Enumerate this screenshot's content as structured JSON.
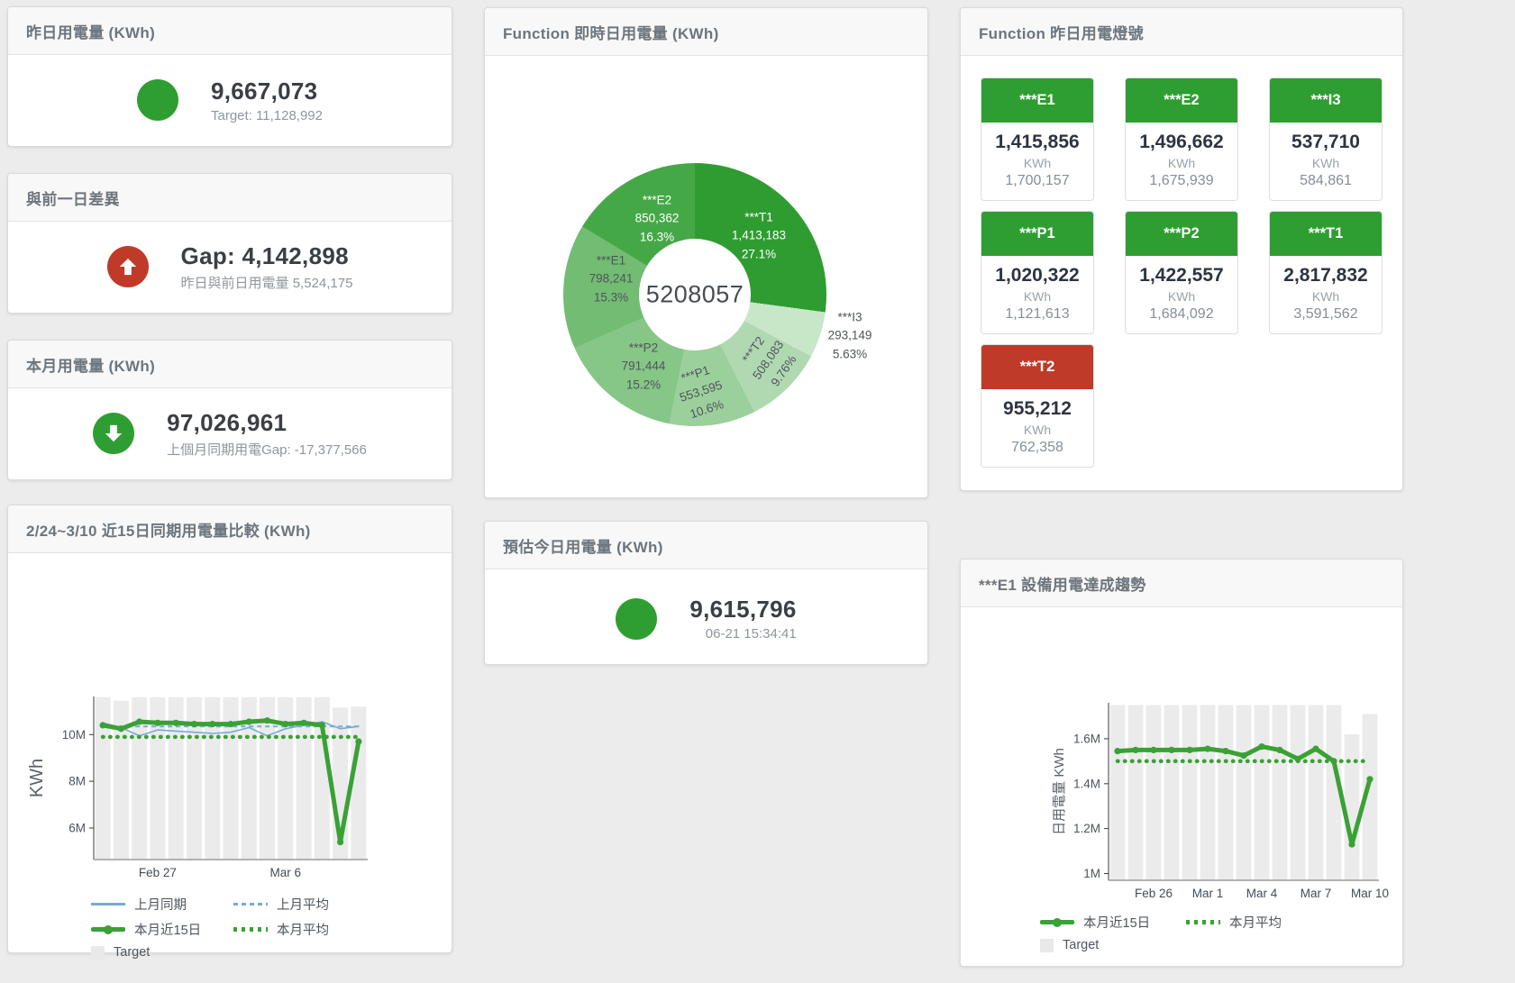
{
  "kpi_cards": [
    {
      "title": "昨日用電量 (KWh)",
      "value": "9,667,073",
      "sub": "Target: 11,128,992",
      "status_color": "#2f9e32",
      "arrow": "none"
    },
    {
      "title": "與前一日差異",
      "value": "Gap: 4,142,898",
      "sub": "昨日與前日用電量 5,524,175",
      "status_color": "#c03a28",
      "arrow": "up"
    },
    {
      "title": "本月用電量 (KWh)",
      "value": "97,026,961",
      "sub": "上個月同期用電Gap: -17,377,566",
      "status_color": "#2f9e32",
      "arrow": "down"
    },
    {
      "title": "預估今日用電量 (KWh)",
      "value": "9,615,796",
      "sub": "06-21 15:34:41",
      "status_color": "#2f9e32",
      "arrow": "none"
    }
  ],
  "donut_card": {
    "title": "Function 即時日用電量 (KWh)",
    "center_value": "5208057"
  },
  "lamp_card": {
    "title": "Function 昨日用電燈號",
    "unit": "KWh",
    "status_colors": {
      "green": "#2f9e32",
      "red": "#c03a28"
    },
    "tiles": [
      {
        "id": "e1",
        "label": "***E1",
        "value": "1,415,856",
        "target": "1,700,157",
        "status": "green"
      },
      {
        "id": "e2",
        "label": "***E2",
        "value": "1,496,662",
        "target": "1,675,939",
        "status": "green"
      },
      {
        "id": "i3",
        "label": "***I3",
        "value": "537,710",
        "target": "584,861",
        "status": "green"
      },
      {
        "id": "p1",
        "label": "***P1",
        "value": "1,020,322",
        "target": "1,121,613",
        "status": "green"
      },
      {
        "id": "p2",
        "label": "***P2",
        "value": "1,422,557",
        "target": "1,684,092",
        "status": "green"
      },
      {
        "id": "t1",
        "label": "***T1",
        "value": "2,817,832",
        "target": "3,591,562",
        "status": "green"
      },
      {
        "id": "t2",
        "label": "***T2",
        "value": "955,212",
        "target": "762,358",
        "status": "red"
      }
    ]
  },
  "compare_card": {
    "title": "2/24~3/10 近15日同期用電量比較 (KWh)",
    "legend": [
      {
        "label": "上月同期",
        "swatch": "blue-line"
      },
      {
        "label": "上月平均",
        "swatch": "blue-dash"
      },
      {
        "label": "本月近15日",
        "swatch": "green-line"
      },
      {
        "label": "本月平均",
        "swatch": "green-dot"
      },
      {
        "label": "Target",
        "swatch": "gray-box"
      }
    ]
  },
  "trend_card": {
    "title": "***E1 設備用電達成趨勢",
    "legend": [
      {
        "label": "本月近15日",
        "swatch": "green-line"
      },
      {
        "label": "本月平均",
        "swatch": "green-dot"
      },
      {
        "label": "Target",
        "swatch": "gray-box"
      }
    ]
  },
  "chart_data": [
    {
      "id": "function-realtime-donut",
      "type": "pie",
      "title": "Function 即時日用電量 (KWh)",
      "center_value": "5208057",
      "slices": [
        {
          "id": "t1",
          "label": "***T1",
          "value": "1,413,183",
          "pct": 27.1,
          "pct_label": "27.1%",
          "color": "#2f9c31",
          "text": "light"
        },
        {
          "id": "i3",
          "label": "***I3",
          "value": "293,149",
          "pct": 5.63,
          "pct_label": "5.63%",
          "color": "#c8e6c8",
          "text": "dark"
        },
        {
          "id": "t2",
          "label": "***T2",
          "value": "508,083",
          "pct": 9.76,
          "pct_label": "9.76%",
          "color": "#b0d9b1",
          "text": "dark"
        },
        {
          "id": "p1",
          "label": "***P1",
          "value": "553,595",
          "pct": 10.6,
          "pct_label": "10.6%",
          "color": "#9bd09c",
          "text": "dark"
        },
        {
          "id": "p2",
          "label": "***P2",
          "value": "791,444",
          "pct": 15.2,
          "pct_label": "15.2%",
          "color": "#86c687",
          "text": "dark"
        },
        {
          "id": "e1",
          "label": "***E1",
          "value": "798,241",
          "pct": 15.3,
          "pct_label": "15.3%",
          "color": "#72bc73",
          "text": "dark"
        },
        {
          "id": "e2",
          "label": "***E2",
          "value": "850,362",
          "pct": 16.3,
          "pct_label": "16.3%",
          "color": "#45a847",
          "text": "light"
        }
      ]
    },
    {
      "id": "compare-15day",
      "type": "line",
      "title": "2/24~3/10 近15日同期用電量比較 (KWh)",
      "ylabel": "KWh",
      "units": "millions of KWh",
      "categories": [
        "2/24",
        "2/25",
        "2/26",
        "2/27",
        "2/28",
        "3/1",
        "3/2",
        "3/3",
        "3/4",
        "3/5",
        "3/6",
        "3/7",
        "3/8",
        "3/9",
        "3/10"
      ],
      "bar_series_name": "Target",
      "target_bars": [
        11.6,
        11.45,
        11.6,
        11.6,
        11.6,
        11.6,
        11.6,
        11.6,
        11.6,
        11.6,
        11.6,
        11.6,
        11.6,
        11.15,
        11.2
      ],
      "bar_color": "#ebebeb",
      "series": [
        {
          "name": "上月同期",
          "values": [
            10.5,
            10.3,
            9.95,
            10.2,
            10.15,
            10.1,
            10.05,
            10.1,
            10.3,
            9.95,
            10.25,
            10.4,
            10.55,
            10.25,
            10.35
          ],
          "color": "#74abd8",
          "style": "solid",
          "width": 1.6
        },
        {
          "name": "上月平均",
          "value": 10.35,
          "color": "#74abd8",
          "style": "dash",
          "width": 2
        },
        {
          "name": "本月平均",
          "value": 9.9,
          "color": "#3aa135",
          "style": "dot",
          "width": 4.5
        },
        {
          "name": "本月近15日",
          "values": [
            10.4,
            10.25,
            10.55,
            10.5,
            10.5,
            10.45,
            10.45,
            10.45,
            10.55,
            10.6,
            10.45,
            10.5,
            10.4,
            5.4,
            9.7
          ],
          "color": "#3aa135",
          "style": "solid",
          "width": 5,
          "markers": true
        }
      ],
      "yticks": [
        {
          "v": 6,
          "label": "6M"
        },
        {
          "v": 8,
          "label": "8M"
        },
        {
          "v": 10,
          "label": "10M"
        }
      ],
      "xticks": [
        {
          "i": 3,
          "label": "Feb 27"
        },
        {
          "i": 10,
          "label": "Mar 6"
        }
      ],
      "ylim": [
        4.65,
        11.63
      ],
      "legend_position": "bottom"
    },
    {
      "id": "e1-trend",
      "type": "line",
      "title": "***E1 設備用電達成趨勢",
      "ylabel": "日用電量 KWh",
      "units": "millions of KWh",
      "categories": [
        "2/24",
        "2/25",
        "2/26",
        "2/27",
        "2/28",
        "3/1",
        "3/2",
        "3/3",
        "3/4",
        "3/5",
        "3/6",
        "3/7",
        "3/8",
        "3/9",
        "3/10"
      ],
      "bar_series_name": "Target",
      "target_bars": [
        1.75,
        1.75,
        1.75,
        1.75,
        1.75,
        1.75,
        1.75,
        1.75,
        1.75,
        1.75,
        1.75,
        1.75,
        1.75,
        1.62,
        1.71
      ],
      "bar_color": "#ebebeb",
      "series": [
        {
          "name": "本月平均",
          "value": 1.5,
          "color": "#3aa135",
          "style": "dot",
          "width": 4.5
        },
        {
          "name": "本月近15日",
          "values": [
            1.545,
            1.55,
            1.55,
            1.55,
            1.55,
            1.555,
            1.545,
            1.525,
            1.565,
            1.55,
            1.51,
            1.555,
            1.5,
            1.13,
            1.42
          ],
          "color": "#3aa135",
          "style": "solid",
          "width": 5,
          "markers": true
        }
      ],
      "yticks": [
        {
          "v": 1,
          "label": "1M"
        },
        {
          "v": 1.2,
          "label": "1.2M"
        },
        {
          "v": 1.4,
          "label": "1.4M"
        },
        {
          "v": 1.6,
          "label": "1.6M"
        }
      ],
      "xticks": [
        {
          "i": 2,
          "label": "Feb 26"
        },
        {
          "i": 5,
          "label": "Mar 1"
        },
        {
          "i": 8,
          "label": "Mar 4"
        },
        {
          "i": 11,
          "label": "Mar 7"
        },
        {
          "i": 14,
          "label": "Mar 10"
        }
      ],
      "ylim": [
        0.97,
        1.76
      ],
      "legend_position": "bottom"
    }
  ]
}
